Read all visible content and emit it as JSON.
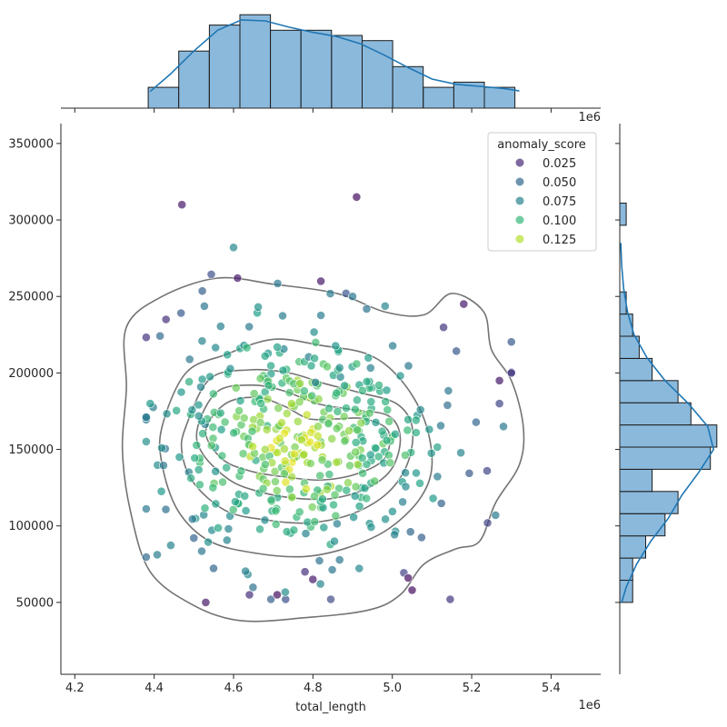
{
  "chart_data": {
    "type": "scatter",
    "subtype": "jointplot",
    "xlabel": "total_length",
    "ylabel": "",
    "x_offset_label": "1e6",
    "x_ticks": [
      "4.2",
      "4.4",
      "4.6",
      "4.8",
      "5.0",
      "5.2",
      "5.4"
    ],
    "x_tick_values": [
      4200000,
      4400000,
      4600000,
      4800000,
      5000000,
      5200000,
      5400000
    ],
    "y_ticks": [
      "50000",
      "100000",
      "150000",
      "200000",
      "250000",
      "300000",
      "350000"
    ],
    "y_tick_values": [
      50000,
      100000,
      150000,
      200000,
      250000,
      300000,
      350000
    ],
    "xlim": [
      4165000,
      5525000
    ],
    "ylim": [
      3000,
      363000
    ],
    "grid": false,
    "legend": {
      "title": "anomaly_score",
      "placement": "top-right",
      "entries": [
        {
          "label": "0.025",
          "color": "#482878"
        },
        {
          "label": "0.050",
          "color": "#31688e"
        },
        {
          "label": "0.075",
          "color": "#26828e"
        },
        {
          "label": "0.100",
          "color": "#35b779"
        },
        {
          "label": "0.125",
          "color": "#b5de2b"
        }
      ]
    },
    "colormap": "viridis",
    "hue_range": [
      0.0,
      0.15
    ],
    "point_seed": 42,
    "point_count": 460,
    "outlier_points": [
      {
        "x": 4470000,
        "y": 310000,
        "score": 0.01
      },
      {
        "x": 4910000,
        "y": 315000,
        "score": 0.005
      },
      {
        "x": 4430000,
        "y": 235000,
        "score": 0.02
      },
      {
        "x": 4390000,
        "y": 180000,
        "score": 0.08
      },
      {
        "x": 4600000,
        "y": 282000,
        "score": 0.07
      },
      {
        "x": 5300000,
        "y": 200000,
        "score": 0.02
      },
      {
        "x": 5180000,
        "y": 245000,
        "score": 0.01
      },
      {
        "x": 4610000,
        "y": 262000,
        "score": 0.01
      },
      {
        "x": 4530000,
        "y": 50000,
        "score": 0.01
      },
      {
        "x": 5050000,
        "y": 58000,
        "score": 0.005
      },
      {
        "x": 5240000,
        "y": 102000,
        "score": 0.03
      },
      {
        "x": 5260000,
        "y": 107000,
        "score": 0.06
      },
      {
        "x": 5280000,
        "y": 165000,
        "score": 0.06
      },
      {
        "x": 4820000,
        "y": 260000,
        "score": 0.01
      },
      {
        "x": 4900000,
        "y": 250000,
        "score": 0.06
      },
      {
        "x": 4780000,
        "y": 70000,
        "score": 0.02
      },
      {
        "x": 4800000,
        "y": 65000,
        "score": 0.01
      },
      {
        "x": 4640000,
        "y": 55000,
        "score": 0.02
      },
      {
        "x": 4710000,
        "y": 55000,
        "score": 0.005
      },
      {
        "x": 5040000,
        "y": 66000,
        "score": 0.005
      },
      {
        "x": 5270000,
        "y": 195000,
        "score": 0.01
      },
      {
        "x": 5270000,
        "y": 180000,
        "score": 0.03
      }
    ],
    "x_histogram": {
      "bin_edges": [
        4385000,
        4462000,
        4539000,
        4616000,
        4693000,
        4770000,
        4847000,
        4924000,
        5001000,
        5078000,
        5155000,
        5232000,
        5309000
      ],
      "counts": [
        4,
        11,
        16,
        18,
        15,
        15,
        14,
        13,
        8,
        4,
        5,
        4
      ],
      "kde": [
        [
          4390000,
          3.2
        ],
        [
          4440000,
          6.5
        ],
        [
          4500000,
          11.0
        ],
        [
          4560000,
          15.0
        ],
        [
          4620000,
          17.0
        ],
        [
          4680000,
          16.8
        ],
        [
          4740000,
          15.6
        ],
        [
          4800000,
          14.6
        ],
        [
          4860000,
          13.8
        ],
        [
          4920000,
          12.4
        ],
        [
          4980000,
          10.2
        ],
        [
          5040000,
          7.8
        ],
        [
          5100000,
          5.6
        ],
        [
          5160000,
          4.6
        ],
        [
          5220000,
          4.2
        ],
        [
          5280000,
          3.8
        ],
        [
          5320000,
          3.3
        ]
      ]
    },
    "y_histogram": {
      "bin_edges": [
        50000,
        64500,
        79000,
        93500,
        108000,
        122500,
        137000,
        151500,
        166000,
        180500,
        195000,
        209500,
        224000,
        238500,
        253000,
        267500,
        282000,
        296500,
        311000
      ],
      "counts": [
        2,
        2,
        4,
        7,
        9,
        5,
        14,
        15,
        11,
        9,
        5,
        3,
        2,
        1,
        0,
        0,
        0,
        1
      ],
      "kde": [
        [
          50000,
          0.3
        ],
        [
          60000,
          1.0
        ],
        [
          75000,
          2.6
        ],
        [
          90000,
          4.8
        ],
        [
          105000,
          7.5
        ],
        [
          120000,
          9.6
        ],
        [
          135000,
          12.2
        ],
        [
          150000,
          14.5
        ],
        [
          165000,
          13.6
        ],
        [
          180000,
          10.6
        ],
        [
          195000,
          7.0
        ],
        [
          210000,
          4.2
        ],
        [
          225000,
          2.2
        ],
        [
          240000,
          1.2
        ],
        [
          255000,
          0.6
        ],
        [
          270000,
          0.3
        ],
        [
          285000,
          0.15
        ]
      ]
    },
    "kde_contours": [
      [
        [
          4330000,
          230000
        ],
        [
          4420000,
          250000
        ],
        [
          4560000,
          262000
        ],
        [
          4700000,
          258000
        ],
        [
          4860000,
          252000
        ],
        [
          4980000,
          240000
        ],
        [
          5080000,
          238000
        ],
        [
          5150000,
          252000
        ],
        [
          5230000,
          240000
        ],
        [
          5250000,
          215000
        ],
        [
          5300000,
          195000
        ],
        [
          5330000,
          165000
        ],
        [
          5320000,
          140000
        ],
        [
          5260000,
          115000
        ],
        [
          5220000,
          90000
        ],
        [
          5160000,
          85000
        ],
        [
          5080000,
          75000
        ],
        [
          5020000,
          55000
        ],
        [
          4940000,
          45000
        ],
        [
          4780000,
          40000
        ],
        [
          4620000,
          38000
        ],
        [
          4500000,
          48000
        ],
        [
          4390000,
          70000
        ],
        [
          4340000,
          110000
        ],
        [
          4320000,
          150000
        ],
        [
          4330000,
          190000
        ]
      ],
      [
        [
          4420000,
          165000
        ],
        [
          4480000,
          200000
        ],
        [
          4580000,
          212000
        ],
        [
          4700000,
          222000
        ],
        [
          4820000,
          218000
        ],
        [
          4940000,
          212000
        ],
        [
          5020000,
          196000
        ],
        [
          5080000,
          170000
        ],
        [
          5100000,
          140000
        ],
        [
          5070000,
          118000
        ],
        [
          4990000,
          98000
        ],
        [
          4890000,
          86000
        ],
        [
          4780000,
          80000
        ],
        [
          4660000,
          82000
        ],
        [
          4540000,
          90000
        ],
        [
          4460000,
          110000
        ],
        [
          4420000,
          140000
        ]
      ],
      [
        [
          4480000,
          165000
        ],
        [
          4540000,
          196000
        ],
        [
          4640000,
          202000
        ],
        [
          4740000,
          200000
        ],
        [
          4830000,
          193000
        ],
        [
          4920000,
          187000
        ],
        [
          5010000,
          180000
        ],
        [
          5050000,
          165000
        ],
        [
          5040000,
          142000
        ],
        [
          4990000,
          122000
        ],
        [
          4900000,
          108000
        ],
        [
          4790000,
          102000
        ],
        [
          4680000,
          104000
        ],
        [
          4580000,
          110000
        ],
        [
          4500000,
          128000
        ],
        [
          4470000,
          148000
        ]
      ],
      [
        [
          4510000,
          165000
        ],
        [
          4560000,
          188000
        ],
        [
          4650000,
          192000
        ],
        [
          4730000,
          188000
        ],
        [
          4810000,
          180000
        ],
        [
          4900000,
          176000
        ],
        [
          4990000,
          172000
        ],
        [
          5020000,
          158000
        ],
        [
          5000000,
          138000
        ],
        [
          4940000,
          125000
        ],
        [
          4850000,
          118000
        ],
        [
          4760000,
          118000
        ],
        [
          4670000,
          122000
        ],
        [
          4590000,
          130000
        ],
        [
          4520000,
          148000
        ]
      ],
      [
        [
          4530000,
          162000
        ],
        [
          4580000,
          180000
        ],
        [
          4660000,
          184000
        ],
        [
          4730000,
          178000
        ],
        [
          4790000,
          170000
        ],
        [
          4860000,
          170000
        ],
        [
          4930000,
          170000
        ],
        [
          4990000,
          162000
        ],
        [
          4980000,
          144000
        ],
        [
          4910000,
          134000
        ],
        [
          4820000,
          130000
        ],
        [
          4730000,
          132000
        ],
        [
          4640000,
          136000
        ],
        [
          4570000,
          144000
        ]
      ]
    ]
  }
}
